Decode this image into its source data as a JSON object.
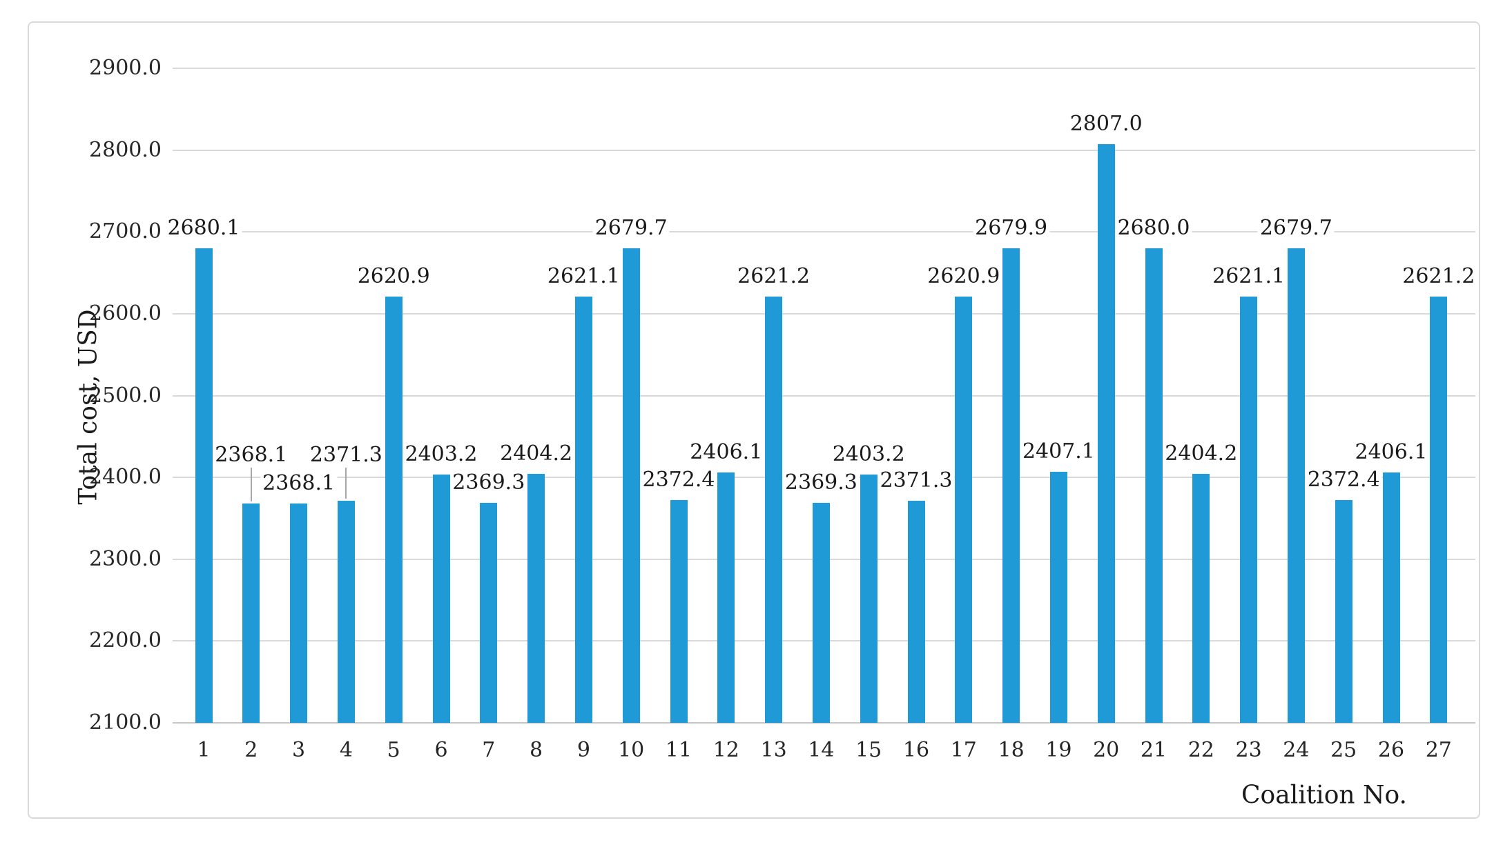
{
  "chart_data": {
    "type": "bar",
    "title": "",
    "xlabel": "Coalition No.",
    "ylabel": "Total cost, USD",
    "categories": [
      "1",
      "2",
      "3",
      "4",
      "5",
      "6",
      "7",
      "8",
      "9",
      "10",
      "11",
      "12",
      "13",
      "14",
      "15",
      "16",
      "17",
      "18",
      "19",
      "20",
      "21",
      "22",
      "23",
      "24",
      "25",
      "26",
      "27"
    ],
    "values": [
      2680.1,
      2368.1,
      2368.1,
      2371.3,
      2620.9,
      2403.2,
      2369.3,
      2404.2,
      2621.1,
      2679.7,
      2372.4,
      2406.1,
      2621.2,
      2369.3,
      2403.2,
      2371.3,
      2620.9,
      2679.9,
      2407.1,
      2807.0,
      2680.0,
      2404.2,
      2621.1,
      2679.7,
      2372.4,
      2406.1,
      2621.2
    ],
    "data_labels": [
      "2680.1",
      "2368.1",
      "2368.1",
      "2371.3",
      "2620.9",
      "2403.2",
      "2369.3",
      "2404.2",
      "2621.1",
      "2679.7",
      "2372.4",
      "2406.1",
      "2621.2",
      "2369.3",
      "2403.2",
      "2371.3",
      "2620.9",
      "2679.9",
      "2407.1",
      "2807.0",
      "2680.0",
      "2404.2",
      "2621.1",
      "2679.7",
      "2372.4",
      "2406.1",
      "2621.2"
    ],
    "ylim": [
      2100,
      2900
    ],
    "ytick_step": 100,
    "ytick_labels": [
      "2100.0",
      "2200.0",
      "2300.0",
      "2400.0",
      "2500.0",
      "2600.0",
      "2700.0",
      "2800.0",
      "2900.0"
    ],
    "grid": true,
    "legend": false,
    "bar_color": "#1F9AD6",
    "gridline_color": "#d9d9d9",
    "axis_line_color": "#c6c6c6",
    "leader_line_color": "#a6a6a6",
    "raised_label_bars": [
      2,
      4
    ]
  }
}
